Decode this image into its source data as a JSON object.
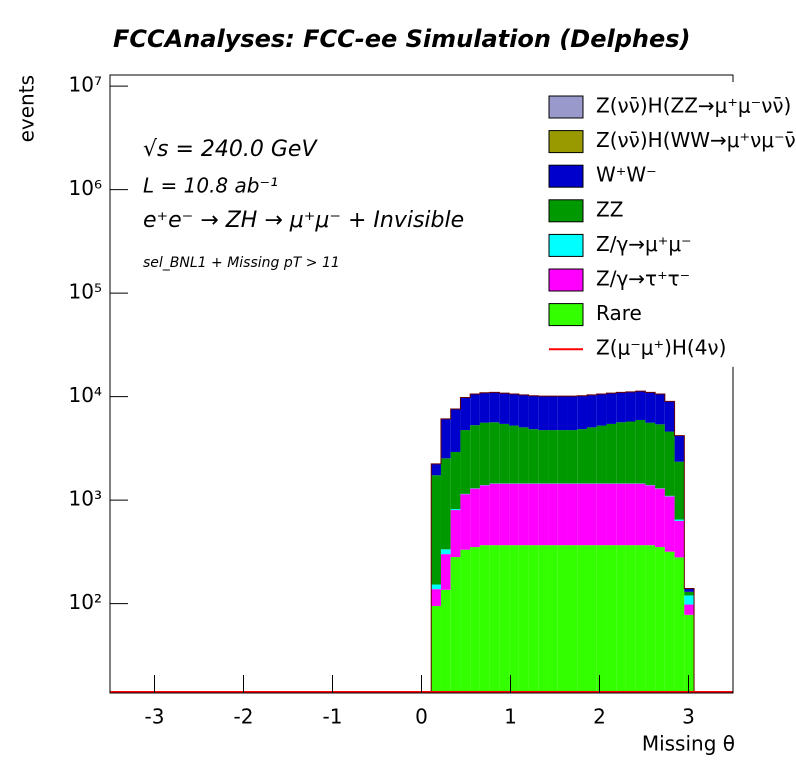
{
  "chart_data": {
    "type": "stacked_histogram",
    "title": "FCCAnalyses: FCC-ee Simulation (Delphes)",
    "xlabel": "Missing θ",
    "ylabel": "events",
    "annotations": [
      "√s = 240.0 GeV",
      "L = 10.8 ab⁻¹",
      "e⁺e⁻ → ZH → μ⁺μ⁻ + Invisible",
      "sel_BNL1 + Missing pT > 11"
    ],
    "log_y": true,
    "legend": "upper right",
    "xlim": [
      -3.5,
      3.5
    ],
    "ylim": [
      13.7,
      12800000
    ],
    "xticks": [
      -3,
      -2,
      -1,
      0,
      1,
      2,
      3
    ],
    "yticks": [
      {
        "value": 100,
        "label": "10²"
      },
      {
        "value": 1000,
        "label": "10³"
      },
      {
        "value": 10000,
        "label": "10⁴"
      },
      {
        "value": 100000,
        "label": "10⁵"
      },
      {
        "value": 1000000,
        "label": "10⁶"
      },
      {
        "value": 10000000,
        "label": "10⁷"
      }
    ],
    "bins": [
      -3.5,
      -3.390625,
      -3.28125,
      -3.171875,
      -3.0625,
      -2.953125,
      -2.84375,
      -2.734375,
      -2.625,
      -2.515625,
      -2.40625,
      -2.296875,
      -2.1875,
      -2.078125,
      -1.96875,
      -1.859375,
      -1.75,
      -1.640625,
      -1.53125,
      -1.421875,
      -1.3125,
      -1.203125,
      -1.09375,
      -0.984375,
      -0.875,
      -0.765625,
      -0.65625,
      -0.546875,
      -0.4375,
      -0.328125,
      -0.21875,
      -0.109375,
      0,
      0.109375,
      0.21875,
      0.328125,
      0.4375,
      0.546875,
      0.65625,
      0.765625,
      0.875,
      0.984375,
      1.09375,
      1.203125,
      1.3125,
      1.421875,
      1.53125,
      1.640625,
      1.75,
      1.859375,
      1.96875,
      2.078125,
      2.1875,
      2.296875,
      2.40625,
      2.515625,
      2.625,
      2.734375,
      2.84375,
      2.953125,
      3.0625,
      3.171875,
      3.28125,
      3.390625,
      3.5
    ],
    "series": [
      {
        "name": "Z(νν̄)H(ZZ→μ⁺μ⁻νν̄)",
        "color": "#9999cc",
        "style": "fill",
        "values": [
          0,
          0,
          0,
          0,
          0,
          0,
          0,
          0,
          0,
          0,
          0,
          0,
          0,
          0,
          0,
          0,
          0,
          0,
          0,
          0,
          0,
          0,
          0,
          0,
          0,
          0,
          0,
          0,
          0,
          0,
          0,
          0,
          0,
          0,
          0,
          0,
          0,
          0,
          0,
          0,
          0,
          0,
          0,
          0,
          0,
          0,
          0,
          0,
          0,
          0,
          0,
          0,
          0,
          0,
          0,
          0,
          0,
          0,
          0,
          0,
          0,
          0,
          0,
          0
        ]
      },
      {
        "name": "Z(νν̄)H(WW→μ⁺νμ⁻ν̄)",
        "color": "#999900",
        "style": "fill",
        "values": [
          0,
          0,
          0,
          0,
          0,
          0,
          0,
          0,
          0,
          0,
          0,
          0,
          0,
          0,
          0,
          0,
          0,
          0,
          0,
          0,
          0,
          0,
          0,
          0,
          0,
          0,
          0,
          0,
          0,
          0,
          0,
          0,
          0,
          0,
          0,
          0,
          0,
          0,
          0,
          0,
          0,
          0,
          0,
          0,
          0,
          0,
          0,
          0,
          0,
          0,
          0,
          0,
          0,
          0,
          0,
          0,
          0,
          0,
          0,
          0,
          0,
          0,
          0,
          0
        ]
      },
      {
        "name": "W⁺W⁻",
        "color": "#0000cc",
        "style": "fill",
        "values": [
          0,
          0,
          0,
          0,
          0,
          0,
          0,
          0,
          0,
          0,
          0,
          0,
          0,
          0,
          0,
          0,
          0,
          0,
          0,
          0,
          0,
          0,
          0,
          0,
          0,
          0,
          0,
          0,
          0,
          0,
          0,
          0,
          0,
          502,
          3565,
          4680,
          5050,
          5300,
          5300,
          5350,
          5350,
          5350,
          5350,
          5350,
          5350,
          5350,
          5350,
          5350,
          5350,
          5350,
          5350,
          5350,
          5350,
          5350,
          5350,
          5400,
          5200,
          4400,
          1850,
          10,
          0,
          0,
          0,
          0
        ]
      },
      {
        "name": "ZZ",
        "color": "#009900",
        "style": "fill",
        "values": [
          0,
          0,
          0,
          0,
          0,
          0,
          0,
          0,
          0,
          0,
          0,
          0,
          0,
          0,
          0,
          0,
          0,
          0,
          0,
          0,
          0,
          0,
          0,
          0,
          0,
          0,
          0,
          0,
          0,
          0,
          0,
          0,
          0,
          1585,
          2200,
          2100,
          3600,
          4000,
          4200,
          4200,
          4000,
          3800,
          3600,
          3400,
          3300,
          3300,
          3300,
          3300,
          3400,
          3600,
          3800,
          4000,
          4200,
          4300,
          4500,
          4200,
          4100,
          3500,
          1700,
          10,
          0,
          0,
          0,
          0
        ]
      },
      {
        "name": "Z/γ→μ⁺μ⁻",
        "color": "#00ffff",
        "style": "fill",
        "values": [
          0,
          0,
          0,
          0,
          0,
          0,
          0,
          0,
          0,
          0,
          0,
          0,
          0,
          0,
          0,
          0,
          0,
          0,
          0,
          0,
          0,
          0,
          0,
          0,
          0,
          0,
          0,
          0,
          0,
          0,
          0,
          0,
          0,
          15,
          34,
          18,
          8,
          8,
          8,
          8,
          8,
          8,
          8,
          8,
          8,
          8,
          8,
          8,
          8,
          8,
          8,
          8,
          8,
          8,
          8,
          8,
          8,
          12,
          20,
          22,
          0,
          0,
          0,
          0
        ]
      },
      {
        "name": "Z/γ→τ⁺τ⁻",
        "color": "#ff00ff",
        "style": "fill",
        "values": [
          0,
          0,
          0,
          0,
          0,
          0,
          0,
          0,
          0,
          0,
          0,
          0,
          0,
          0,
          0,
          0,
          0,
          0,
          0,
          0,
          0,
          0,
          0,
          0,
          0,
          0,
          0,
          0,
          0,
          0,
          0,
          0,
          0,
          43,
          165,
          520,
          810,
          940,
          1025,
          1075,
          1075,
          1075,
          1075,
          1075,
          1075,
          1075,
          1075,
          1075,
          1075,
          1075,
          1075,
          1075,
          1075,
          1075,
          1075,
          1025,
          940,
          770,
          350,
          20,
          0,
          0,
          0,
          0
        ]
      },
      {
        "name": "Rare",
        "color": "#33ff00",
        "style": "fill",
        "values": [
          0,
          0,
          0,
          0,
          0,
          0,
          0,
          0,
          0,
          0,
          0,
          0,
          0,
          0,
          0,
          0,
          0,
          0,
          0,
          0,
          0,
          0,
          0,
          0,
          0,
          0,
          0,
          0,
          0,
          0,
          0,
          0,
          0,
          95,
          136,
          282,
          332,
          352,
          367,
          367,
          367,
          367,
          367,
          367,
          367,
          367,
          367,
          367,
          367,
          367,
          367,
          367,
          367,
          367,
          367,
          367,
          352,
          318,
          280,
          78,
          0,
          0,
          0,
          0
        ]
      },
      {
        "name": "Z(μ⁻μ⁺)H(4ν)",
        "color": "#ff0000",
        "style": "step",
        "values": [
          0,
          0,
          0,
          0,
          0,
          0,
          0,
          0,
          0,
          0,
          0,
          0,
          0,
          0,
          0,
          0,
          0,
          0,
          0,
          0,
          0,
          0,
          0,
          0,
          0,
          0,
          0,
          0,
          0,
          0,
          0,
          0,
          0,
          0,
          0,
          0,
          0,
          0,
          0,
          0,
          0,
          0,
          0,
          0,
          0,
          0,
          0,
          0,
          0,
          0,
          0,
          0,
          0,
          0,
          0,
          0,
          0,
          0,
          0,
          0,
          0,
          0,
          0,
          0
        ]
      }
    ]
  }
}
